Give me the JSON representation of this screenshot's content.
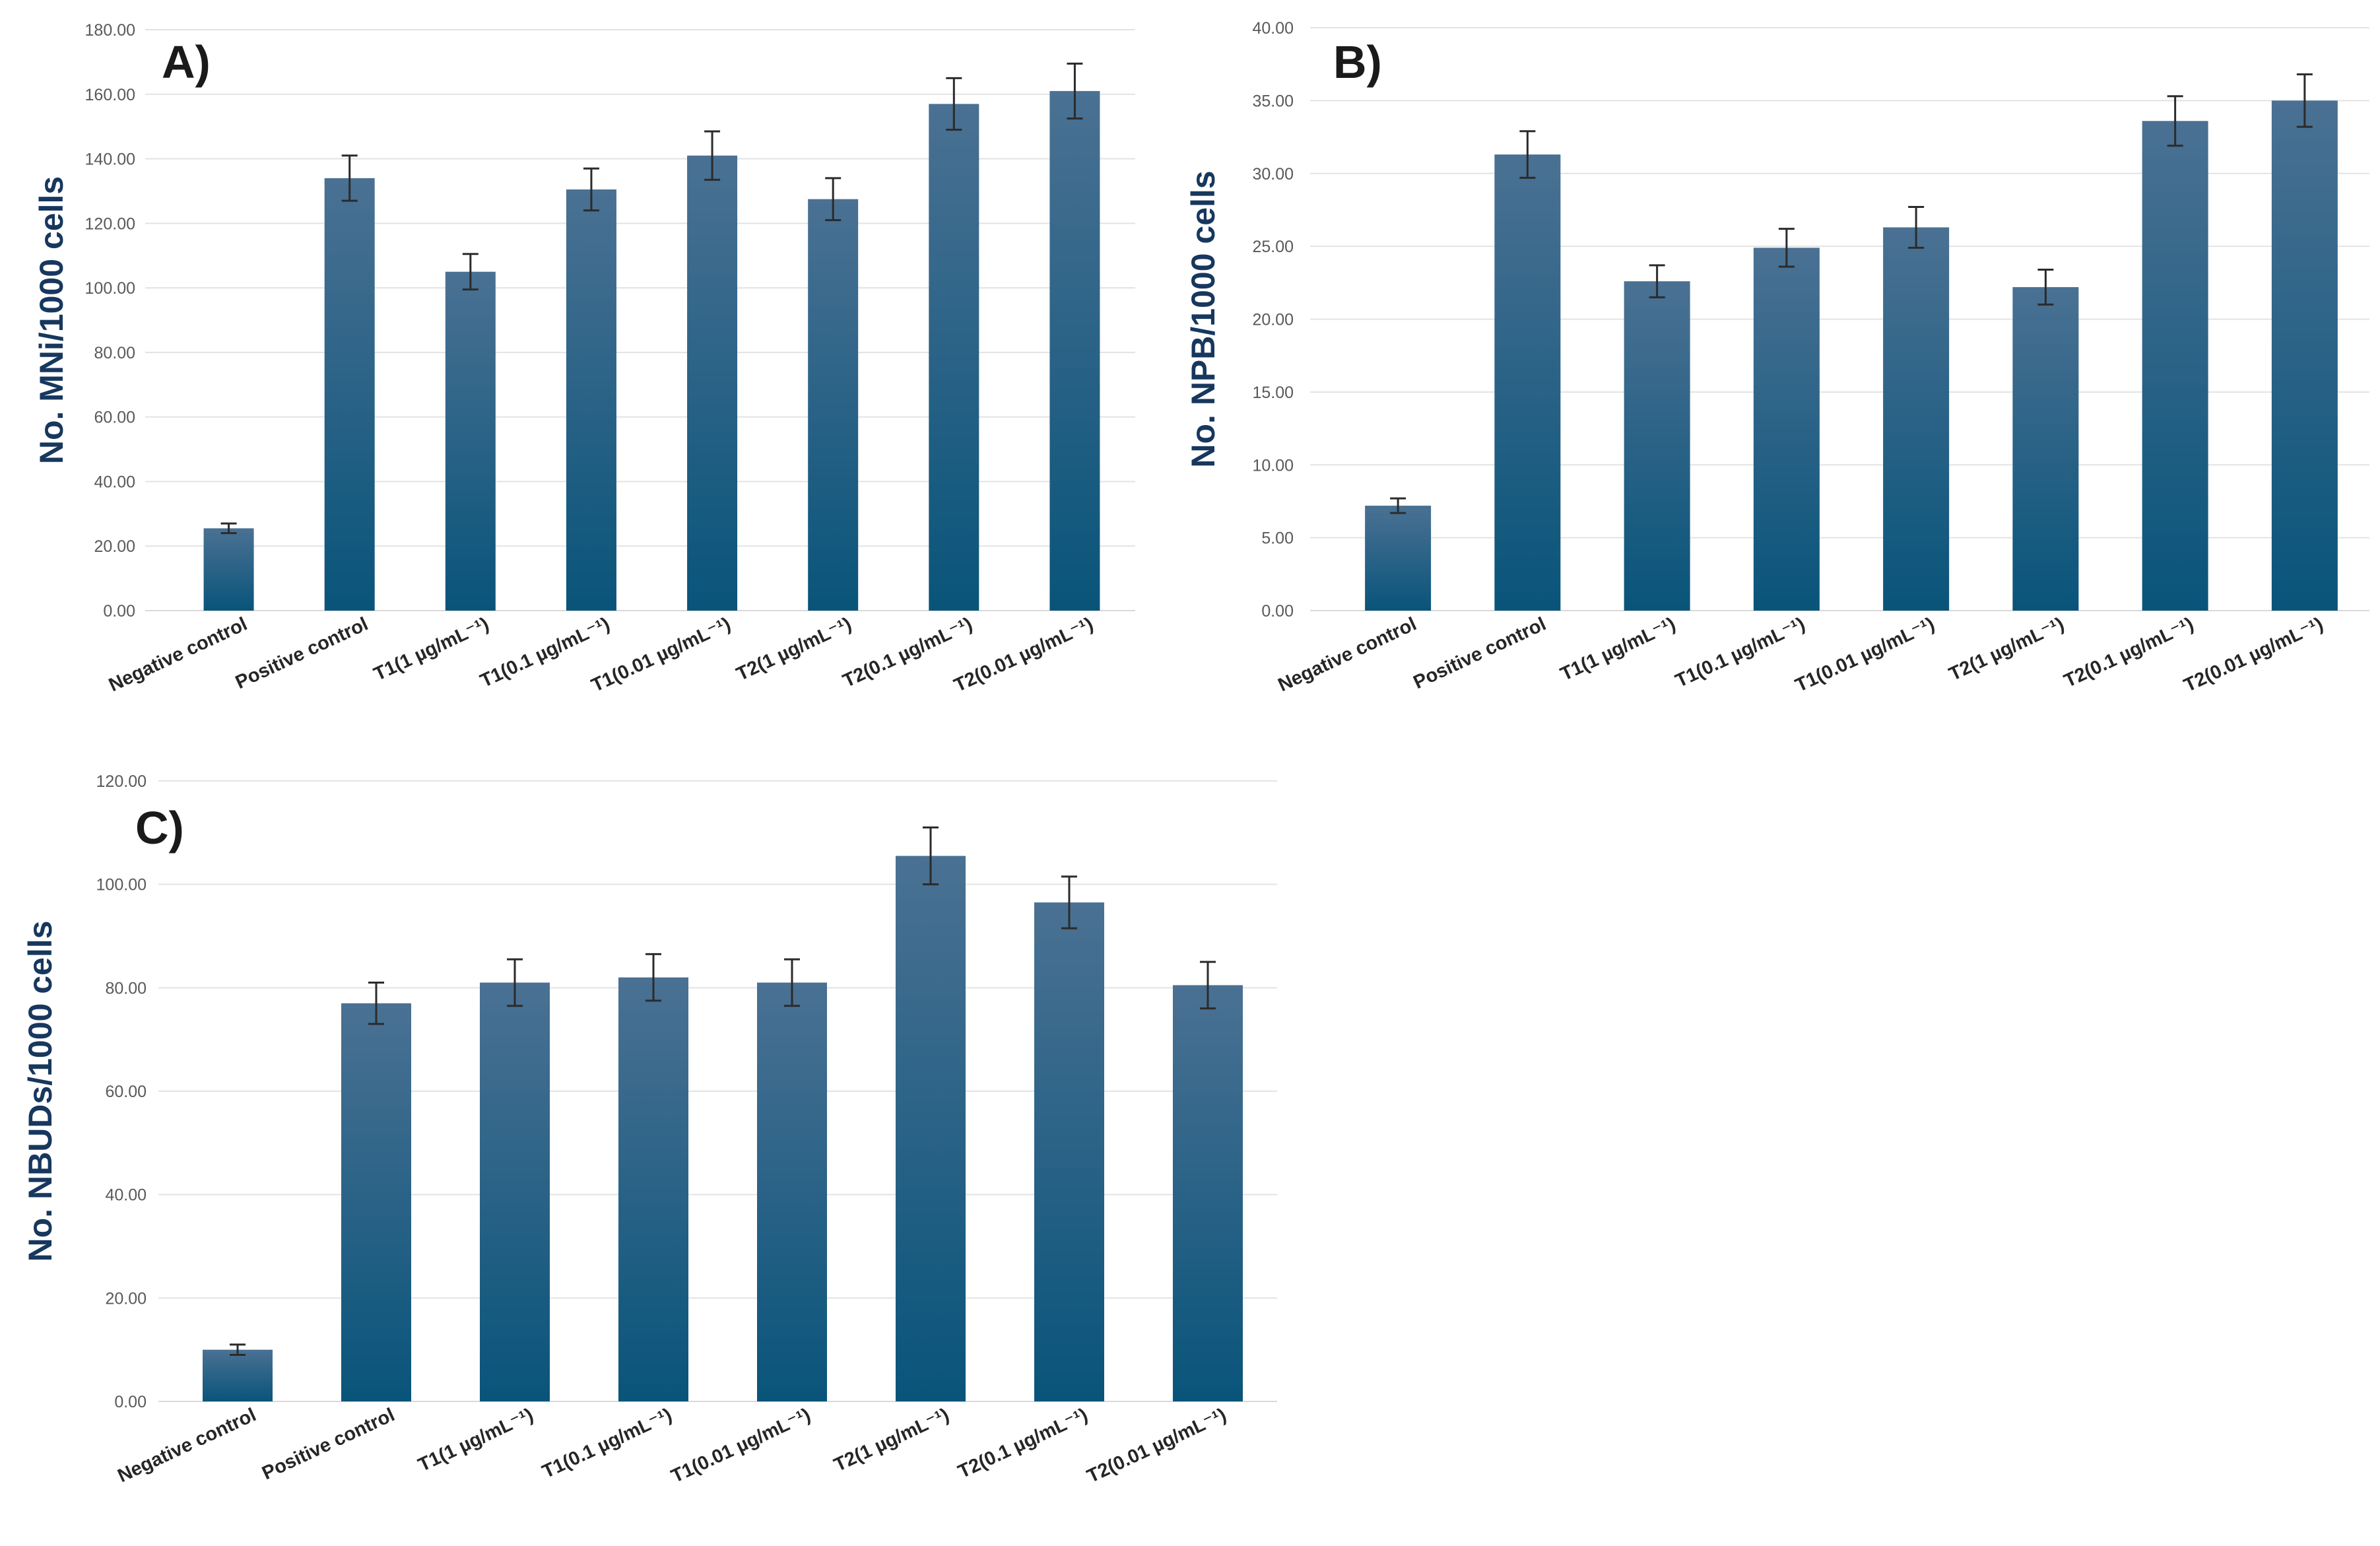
{
  "colors": {
    "bar_top": "#4a7193",
    "bar_bottom": "#09547a"
  },
  "chart_data": [
    {
      "panel_label": "A)",
      "type": "bar",
      "ylabel": "No. MNi/1000 cells",
      "ylim": [
        0,
        180
      ],
      "y_ticks": [
        "0.00",
        "20.00",
        "40.00",
        "60.00",
        "80.00",
        "100.00",
        "120.00",
        "140.00",
        "160.00",
        "180.00"
      ],
      "categories": [
        "Negative control",
        "Positive control",
        "T1(1 µg/mL⁻¹)",
        "T1(0.1 µg/mL⁻¹)",
        "T1(0.01 µg/mL⁻¹)",
        "T2(1 µg/mL⁻¹)",
        "T2(0.1 µg/mL⁻¹)",
        "T2(0.01 µg/mL⁻¹)"
      ],
      "values": [
        25.5,
        134,
        105,
        130.5,
        141,
        127.5,
        157,
        161
      ],
      "errors": [
        1.5,
        7,
        5.5,
        6.5,
        7.5,
        6.5,
        8,
        8.5
      ],
      "grid": true
    },
    {
      "panel_label": "B)",
      "type": "bar",
      "ylabel": "No. NPB/1000 cells",
      "ylim": [
        0,
        40
      ],
      "y_ticks": [
        "0.00",
        "5.00",
        "10.00",
        "15.00",
        "20.00",
        "25.00",
        "30.00",
        "35.00",
        "40.00"
      ],
      "categories": [
        "Negative control",
        "Positive control",
        "T1(1 µg/mL⁻¹)",
        "T1(0.1 µg/mL⁻¹)",
        "T1(0.01 µg/mL⁻¹)",
        "T2(1 µg/mL⁻¹)",
        "T2(0.1 µg/mL⁻¹)",
        "T2(0.01 µg/mL⁻¹)"
      ],
      "values": [
        7.2,
        31.3,
        22.6,
        24.9,
        26.3,
        22.2,
        33.6,
        35
      ],
      "errors": [
        0.5,
        1.6,
        1.1,
        1.3,
        1.4,
        1.2,
        1.7,
        1.8
      ],
      "grid": true
    },
    {
      "panel_label": "C)",
      "type": "bar",
      "ylabel": "No. NBUDs/1000 cells",
      "ylim": [
        0,
        120
      ],
      "y_ticks": [
        "0.00",
        "20.00",
        "40.00",
        "60.00",
        "80.00",
        "100.00",
        "120.00"
      ],
      "categories": [
        "Negative control",
        "Positive control",
        "T1(1 µg/mL⁻¹)",
        "T1(0.1 µg/mL⁻¹)",
        "T1(0.01 µg/mL⁻¹)",
        "T2(1 µg/mL⁻¹)",
        "T2(0.1 µg/mL⁻¹)",
        "T2(0.01 µg/mL⁻¹)"
      ],
      "values": [
        10,
        77,
        81,
        82,
        81,
        105.5,
        96.5,
        80.5
      ],
      "errors": [
        1,
        4,
        4.5,
        4.5,
        4.5,
        5.5,
        5,
        4.5
      ],
      "grid": true
    }
  ]
}
